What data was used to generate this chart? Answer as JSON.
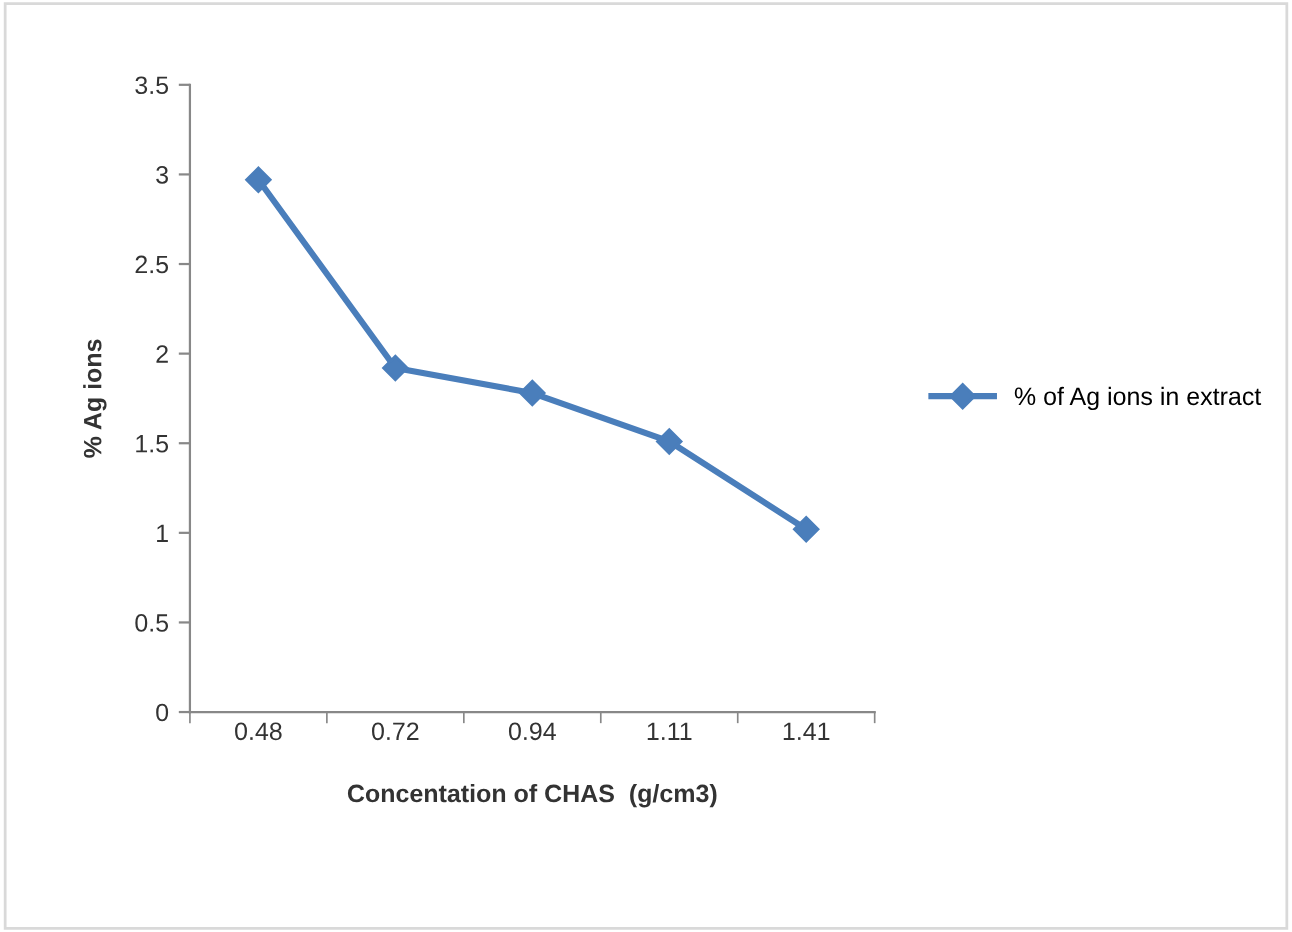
{
  "chart_data": {
    "type": "line",
    "xlabel": "Concentation of CHAS  (g/cm3)",
    "ylabel": "% Ag ions",
    "categories": [
      "0.48",
      "0.72",
      "0.94",
      "1.11",
      "1.41"
    ],
    "series": [
      {
        "name": "% of Ag ions in extract",
        "color": "#4a7ebb",
        "values": [
          2.97,
          1.92,
          1.78,
          1.51,
          1.02
        ]
      }
    ],
    "ylim": [
      0,
      3.5
    ],
    "yticks": [
      0,
      0.5,
      1,
      1.5,
      2,
      2.5,
      3,
      3.5
    ],
    "grid": false,
    "legend": "right",
    "marker": "diamond",
    "line_style": "solid"
  }
}
